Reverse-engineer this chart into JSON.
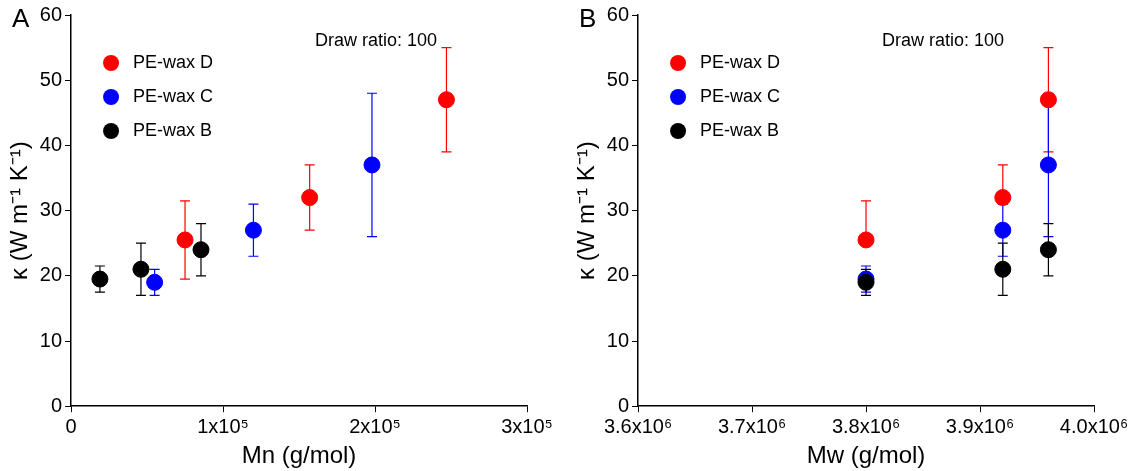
{
  "chart_data": [
    {
      "type": "scatter",
      "title": "A",
      "xlabel": "Mn (g/mol)",
      "ylabel": "κ (W m⁻¹ K⁻¹)",
      "annotations": [
        "Draw ratio: 100"
      ],
      "legend": "top left",
      "grid": false,
      "marker": "circle",
      "xlim": [
        0,
        300000
      ],
      "xticks": [
        {
          "value": 0,
          "label": "0"
        },
        {
          "value": 100000,
          "label": "1x10⁵"
        },
        {
          "value": 200000,
          "label": "2x10⁵"
        },
        {
          "value": 300000,
          "label": "3x10⁵"
        }
      ],
      "ylim": [
        0,
        60
      ],
      "yticks": [
        0,
        10,
        20,
        30,
        40,
        50,
        60
      ],
      "series": [
        {
          "name": "PE-wax D",
          "color": "#ff0000",
          "x": [
            75000,
            157000,
            247000
          ],
          "values": [
            25.5,
            32,
            47
          ],
          "errors": [
            [
              19.5,
              31.5
            ],
            [
              27,
              37
            ],
            [
              39,
              55
            ]
          ]
        },
        {
          "name": "PE-wax C",
          "color": "#0000ff",
          "x": [
            55000,
            120000,
            198000
          ],
          "values": [
            19,
            27,
            37
          ],
          "errors": [
            [
              17,
              21
            ],
            [
              23,
              31
            ],
            [
              26,
              48
            ]
          ]
        },
        {
          "name": "PE-wax B",
          "color": "#000000",
          "x": [
            19000,
            46000,
            85500
          ],
          "values": [
            19.5,
            21,
            24
          ],
          "errors": [
            [
              17.5,
              21.5
            ],
            [
              17,
              25
            ],
            [
              20,
              28
            ]
          ]
        }
      ]
    },
    {
      "type": "scatter",
      "title": "B",
      "xlabel": "Mw (g/mol)",
      "ylabel": "κ (W m⁻¹ K⁻¹)",
      "annotations": [
        "Draw ratio: 100"
      ],
      "legend": "top left",
      "grid": false,
      "marker": "circle",
      "xlim": [
        3600000,
        4000000
      ],
      "xticks": [
        {
          "value": 3600000,
          "label": "3.6x10⁶"
        },
        {
          "value": 3700000,
          "label": "3.7x10⁶"
        },
        {
          "value": 3800000,
          "label": "3.8x10⁶"
        },
        {
          "value": 3900000,
          "label": "3.9x10⁶"
        },
        {
          "value": 4000000,
          "label": "4.0x10⁶"
        }
      ],
      "ylim": [
        0,
        60
      ],
      "yticks": [
        0,
        10,
        20,
        30,
        40,
        50,
        60
      ],
      "series": [
        {
          "name": "PE-wax D",
          "color": "#ff0000",
          "x": [
            3800000,
            3920000,
            3960000
          ],
          "values": [
            25.5,
            32,
            47
          ],
          "errors": [
            [
              25.5,
              31.5
            ],
            [
              32,
              37
            ],
            [
              39,
              55
            ]
          ]
        },
        {
          "name": "PE-wax C",
          "color": "#0000ff",
          "x": [
            3800000,
            3920000,
            3960000
          ],
          "values": [
            19.5,
            27,
            37
          ],
          "errors": [
            [
              17.5,
              21.5
            ],
            [
              23,
              31
            ],
            [
              26,
              48
            ]
          ]
        },
        {
          "name": "PE-wax B",
          "color": "#000000",
          "x": [
            3800000,
            3920000,
            3960000
          ],
          "values": [
            19,
            21,
            24
          ],
          "errors": [
            [
              17,
              21
            ],
            [
              17,
              25
            ],
            [
              20,
              28
            ]
          ]
        }
      ]
    }
  ]
}
